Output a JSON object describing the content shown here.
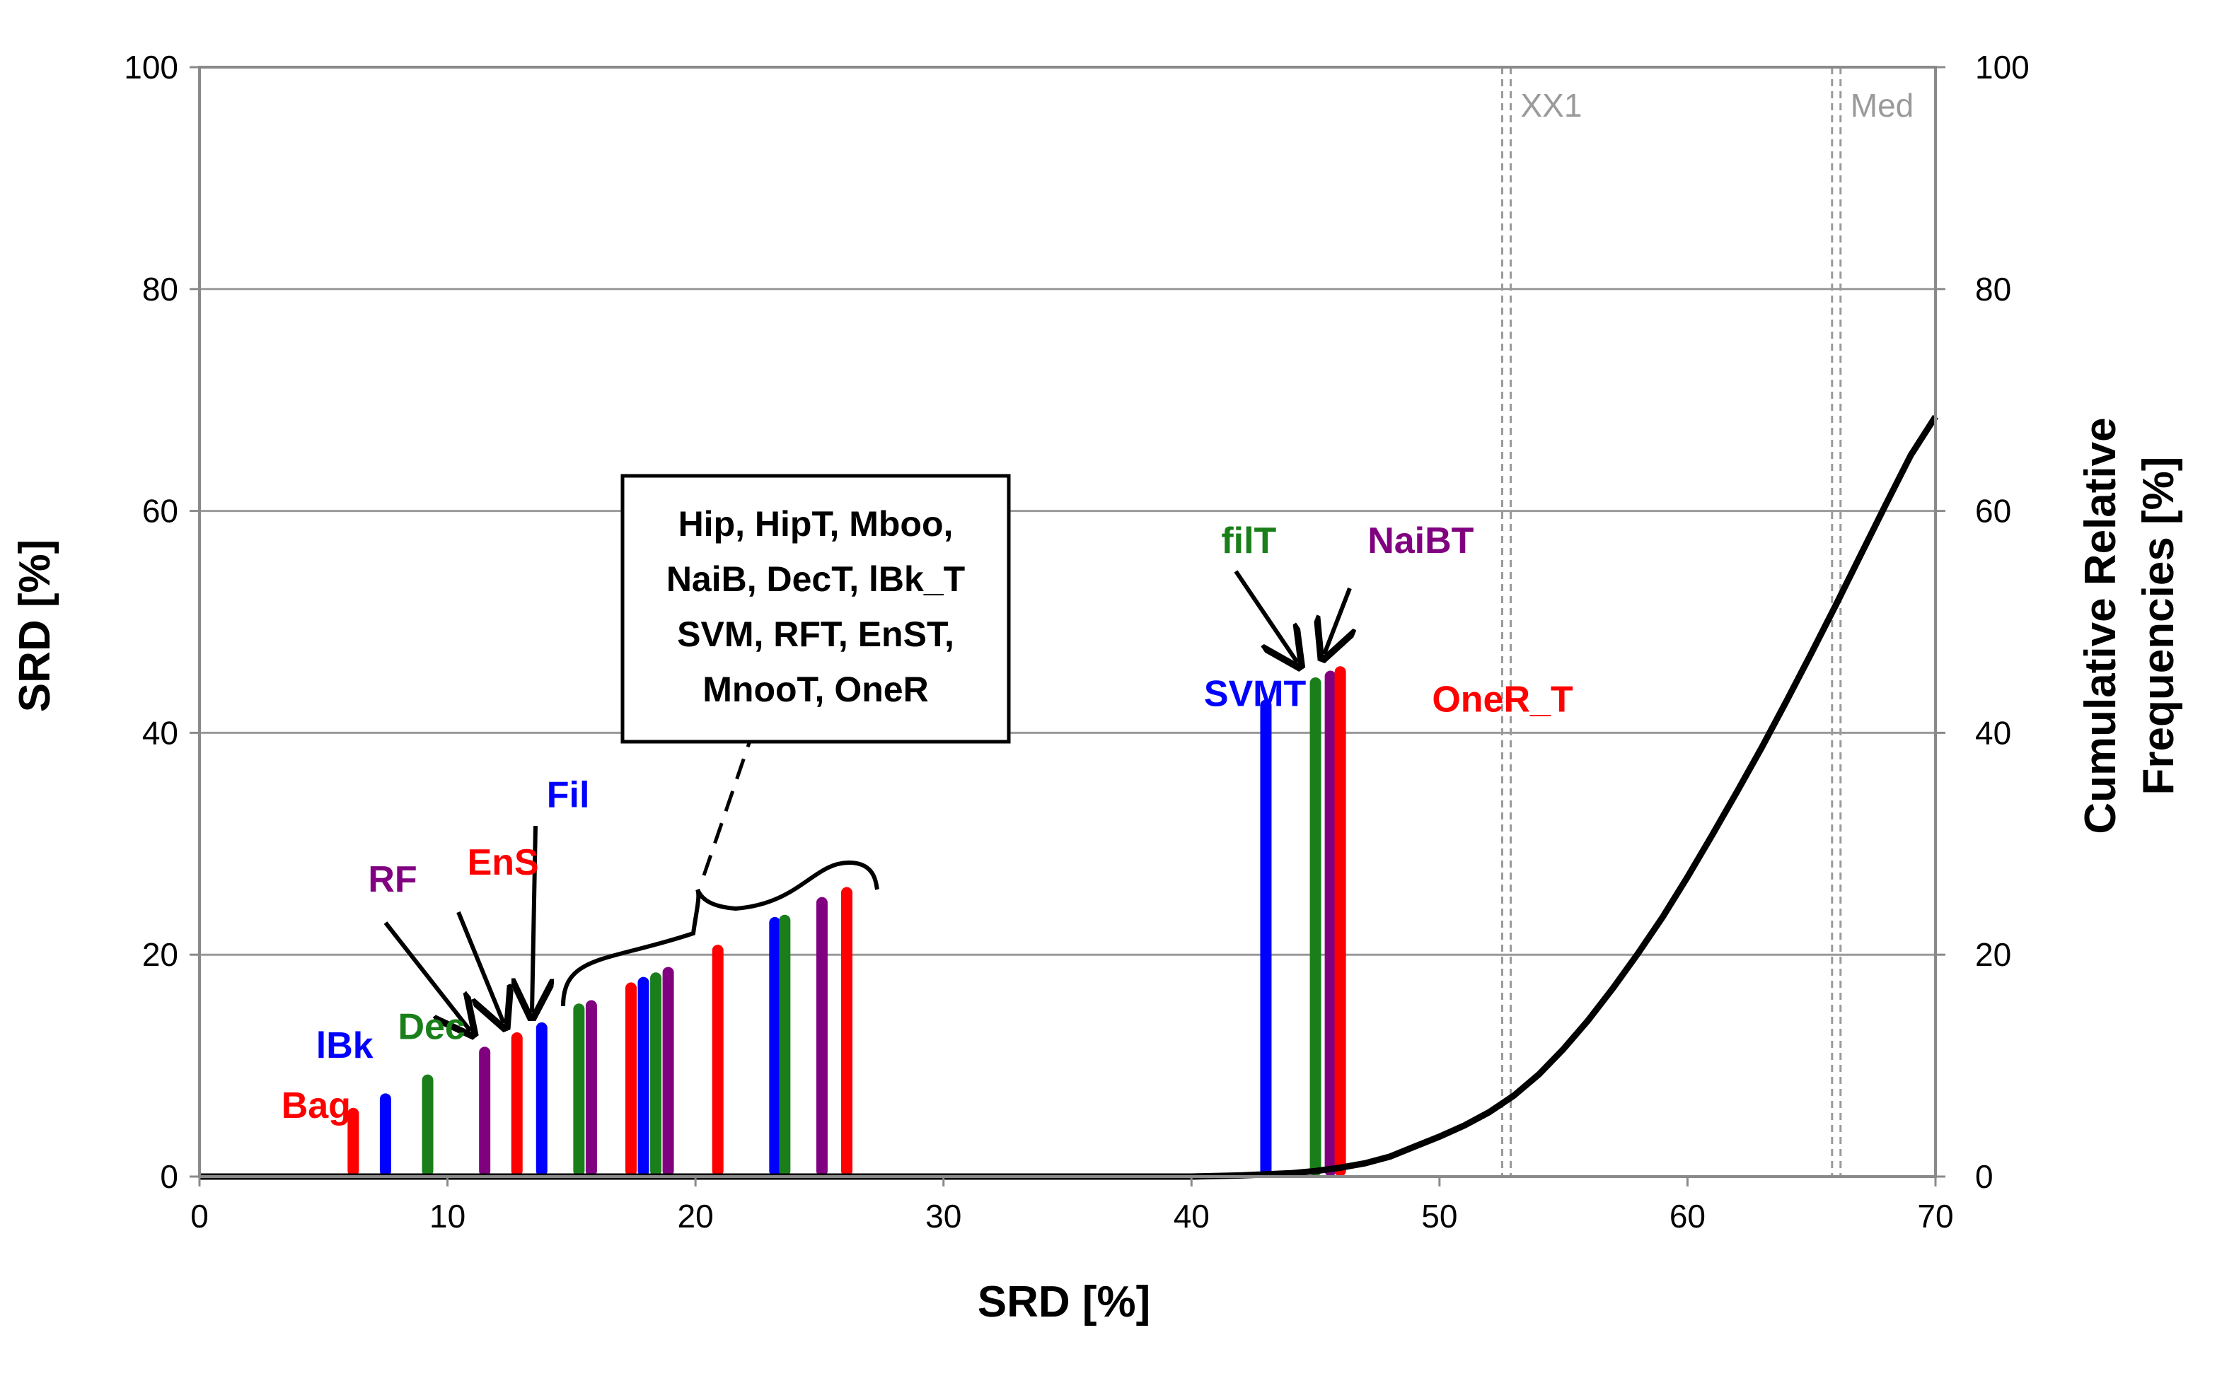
{
  "chart_data": {
    "type": "bar",
    "xlabel": "SRD [%]",
    "ylabel": "SRD [%]",
    "y2label_line1": "Cumulative Relative",
    "y2label_line2": "Frequencies [%]",
    "xlim": [
      0,
      70
    ],
    "ylim": [
      0,
      100
    ],
    "y2lim": [
      0,
      100
    ],
    "xticks": [
      "0",
      "10",
      "20",
      "30",
      "40",
      "50",
      "60",
      "70"
    ],
    "yticks": [
      "0",
      "20",
      "40",
      "60",
      "80",
      "100"
    ],
    "y2ticks": [
      "0",
      "20",
      "40",
      "60",
      "80",
      "100"
    ],
    "grid": "horizontal",
    "colors": {
      "red": "#ff0000",
      "blue": "#0000ff",
      "green": "#1a7f1a",
      "purple": "#800080"
    },
    "bars": [
      {
        "x": 6.2,
        "value": 6.2,
        "color": "red"
      },
      {
        "x": 7.5,
        "value": 7.5,
        "color": "blue"
      },
      {
        "x": 9.2,
        "value": 9.2,
        "color": "green"
      },
      {
        "x": 11.5,
        "value": 11.7,
        "color": "purple"
      },
      {
        "x": 12.8,
        "value": 13.0,
        "color": "red"
      },
      {
        "x": 13.8,
        "value": 13.9,
        "color": "blue"
      },
      {
        "x": 15.3,
        "value": 15.6,
        "color": "green"
      },
      {
        "x": 15.8,
        "value": 15.9,
        "color": "purple"
      },
      {
        "x": 17.4,
        "value": 17.5,
        "color": "red"
      },
      {
        "x": 17.9,
        "value": 18.0,
        "color": "blue"
      },
      {
        "x": 18.4,
        "value": 18.4,
        "color": "green"
      },
      {
        "x": 18.9,
        "value": 18.9,
        "color": "purple"
      },
      {
        "x": 20.9,
        "value": 20.9,
        "color": "red"
      },
      {
        "x": 23.2,
        "value": 23.4,
        "color": "blue"
      },
      {
        "x": 23.6,
        "value": 23.6,
        "color": "green"
      },
      {
        "x": 25.1,
        "value": 25.2,
        "color": "purple"
      },
      {
        "x": 26.1,
        "value": 26.1,
        "color": "red"
      },
      {
        "x": 43.0,
        "value": 43.0,
        "color": "blue"
      },
      {
        "x": 45.0,
        "value": 45.0,
        "color": "green"
      },
      {
        "x": 45.6,
        "value": 45.6,
        "color": "purple"
      },
      {
        "x": 46.0,
        "value": 46.0,
        "color": "red"
      }
    ],
    "bar_labels": [
      {
        "text": "Bag",
        "x": 3.3,
        "y": 5.3,
        "color": "red"
      },
      {
        "text": "lBk",
        "x": 4.7,
        "y": 10.7,
        "color": "blue"
      },
      {
        "text": "Dec",
        "x": 8.0,
        "y": 12.4,
        "color": "green"
      },
      {
        "text": "RF",
        "x": 6.8,
        "y": 25.7,
        "color": "purple"
      },
      {
        "text": "EnS",
        "x": 10.8,
        "y": 27.2,
        "color": "red"
      },
      {
        "text": "Fil",
        "x": 14.0,
        "y": 33.3,
        "color": "blue"
      },
      {
        "text": "SVMT",
        "x": 40.5,
        "y": 42.4,
        "color": "blue"
      },
      {
        "text": "filT",
        "x": 41.2,
        "y": 56.2,
        "color": "green"
      },
      {
        "text": "NaiBT",
        "x": 47.1,
        "y": 56.2,
        "color": "purple"
      },
      {
        "text": "OneR_T",
        "x": 49.7,
        "y": 41.9,
        "color": "red"
      }
    ],
    "annotation_box": {
      "lines": [
        "Hip, HipT, Mboo,",
        "NaiB, DecT, lBk_T",
        "SVM, RFT, EnST,",
        "MnooT, OneR"
      ]
    },
    "cumulative_curve": {
      "name": "Cumulative Relative Frequencies",
      "x": [
        40,
        42,
        44,
        45,
        46,
        47,
        48,
        49,
        50,
        51,
        52,
        53,
        54,
        55,
        56,
        57,
        58,
        59,
        60,
        61,
        62,
        63,
        64,
        65,
        66,
        67,
        68,
        69,
        70
      ],
      "y": [
        0,
        0.1,
        0.3,
        0.5,
        0.8,
        1.2,
        1.8,
        2.7,
        3.6,
        4.6,
        5.8,
        7.3,
        9.2,
        11.5,
        14.1,
        17.0,
        20.1,
        23.4,
        27.0,
        30.8,
        34.7,
        38.7,
        42.9,
        47.2,
        51.6,
        56.1,
        60.6,
        65.0,
        68.5
      ]
    },
    "reference_lines": [
      {
        "label": "XX1",
        "x": 52.7
      },
      {
        "label": "Med",
        "x": 66.0
      }
    ]
  }
}
